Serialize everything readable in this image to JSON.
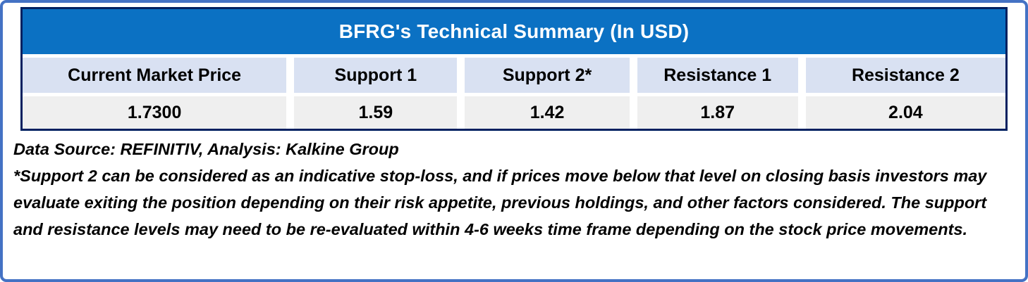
{
  "colors": {
    "outer_frame_blue": "#4472c4",
    "table_border_navy": "#002060",
    "title_bar_blue": "#0b71c3",
    "header_cell_lavender": "#d9e1f2",
    "value_cell_gray": "#efefef",
    "title_text": "#ffffff",
    "body_text": "#000000"
  },
  "table": {
    "title": "BFRG's Technical Summary (In USD)",
    "columns": [
      {
        "label": "Current Market Price",
        "value": "1.7300"
      },
      {
        "label": "Support 1",
        "value": "1.59"
      },
      {
        "label": "Support 2*",
        "value": "1.42"
      },
      {
        "label": "Resistance 1",
        "value": "1.87"
      },
      {
        "label": "Resistance 2",
        "value": "2.04"
      }
    ]
  },
  "notes": {
    "source_line": "Data Source: REFINITIV, Analysis: Kalkine Group",
    "disclaimer": "*Support 2 can be considered as an indicative stop-loss, and if prices move below that level on closing basis investors may evaluate exiting the position depending on their risk appetite, previous holdings, and other factors considered. The support and resistance levels may need to be re-evaluated within 4-6 weeks time frame depending on the stock price movements."
  },
  "chart_data": {
    "type": "table",
    "title": "BFRG's Technical Summary (In USD)",
    "columns": [
      "Current Market Price",
      "Support 1",
      "Support 2*",
      "Resistance 1",
      "Resistance 2"
    ],
    "rows": [
      [
        "1.7300",
        "1.59",
        "1.42",
        "1.87",
        "2.04"
      ]
    ]
  }
}
